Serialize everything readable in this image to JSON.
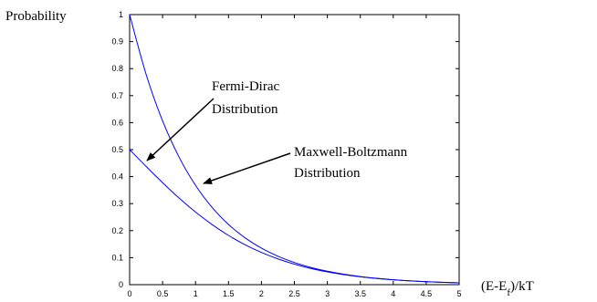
{
  "chart_data": {
    "type": "line",
    "ylabel": "Probability",
    "xlabel": "(E-E",
    "xlabel_sub": "f",
    "xlabel_tail": ")/kT",
    "xlim": [
      0,
      5
    ],
    "ylim": [
      0,
      1
    ],
    "xticks": [
      0,
      0.5,
      1,
      1.5,
      2,
      2.5,
      3,
      3.5,
      4,
      4.5,
      5
    ],
    "yticks": [
      0,
      0.1,
      0.2,
      0.3,
      0.4,
      0.5,
      0.6,
      0.7,
      0.8,
      0.9,
      1
    ],
    "xtick_labels": [
      "0",
      "0.5",
      "1",
      "1.5",
      "2",
      "2.5",
      "3",
      "3.5",
      "4",
      "4.5",
      "5"
    ],
    "ytick_labels": [
      "0",
      "0.1",
      "0.2",
      "0.3",
      "0.4",
      "0.5",
      "0.6",
      "0.7",
      "0.8",
      "0.9",
      "1"
    ],
    "grid": false,
    "line_color": "#0000ff",
    "series": [
      {
        "x": [
          0,
          0.25,
          0.5,
          0.75,
          1,
          1.25,
          1.5,
          1.75,
          2,
          2.25,
          2.5,
          2.75,
          3,
          3.25,
          3.5,
          3.75,
          4,
          4.25,
          4.5,
          4.75,
          5
        ],
        "y": [
          1.0,
          0.7788,
          0.6065,
          0.4724,
          0.3679,
          0.2865,
          0.2231,
          0.1738,
          0.1353,
          0.1054,
          0.0821,
          0.0639,
          0.0498,
          0.0388,
          0.0302,
          0.0235,
          0.0183,
          0.0143,
          0.0111,
          0.0087,
          0.0067
        ]
      },
      {
        "x": [
          0,
          0.25,
          0.5,
          0.75,
          1,
          1.25,
          1.5,
          1.75,
          2,
          2.25,
          2.5,
          2.75,
          3,
          3.25,
          3.5,
          3.75,
          4,
          4.25,
          4.5,
          4.75,
          5
        ],
        "y": [
          0.5,
          0.4378,
          0.3775,
          0.3208,
          0.2689,
          0.2227,
          0.1824,
          0.148,
          0.1192,
          0.0954,
          0.0759,
          0.0601,
          0.0474,
          0.0373,
          0.0293,
          0.023,
          0.018,
          0.014,
          0.011,
          0.0086,
          0.0067
        ]
      }
    ],
    "annotations": [
      {
        "lines": [
          "Fermi-Dirac",
          "Distribution"
        ],
        "points_to_x": 0.2,
        "points_to_y": 0.45
      },
      {
        "lines": [
          "Maxwell-Boltzmann",
          "Distribution"
        ],
        "points_to_x": 1.0,
        "points_to_y": 0.38
      }
    ]
  }
}
